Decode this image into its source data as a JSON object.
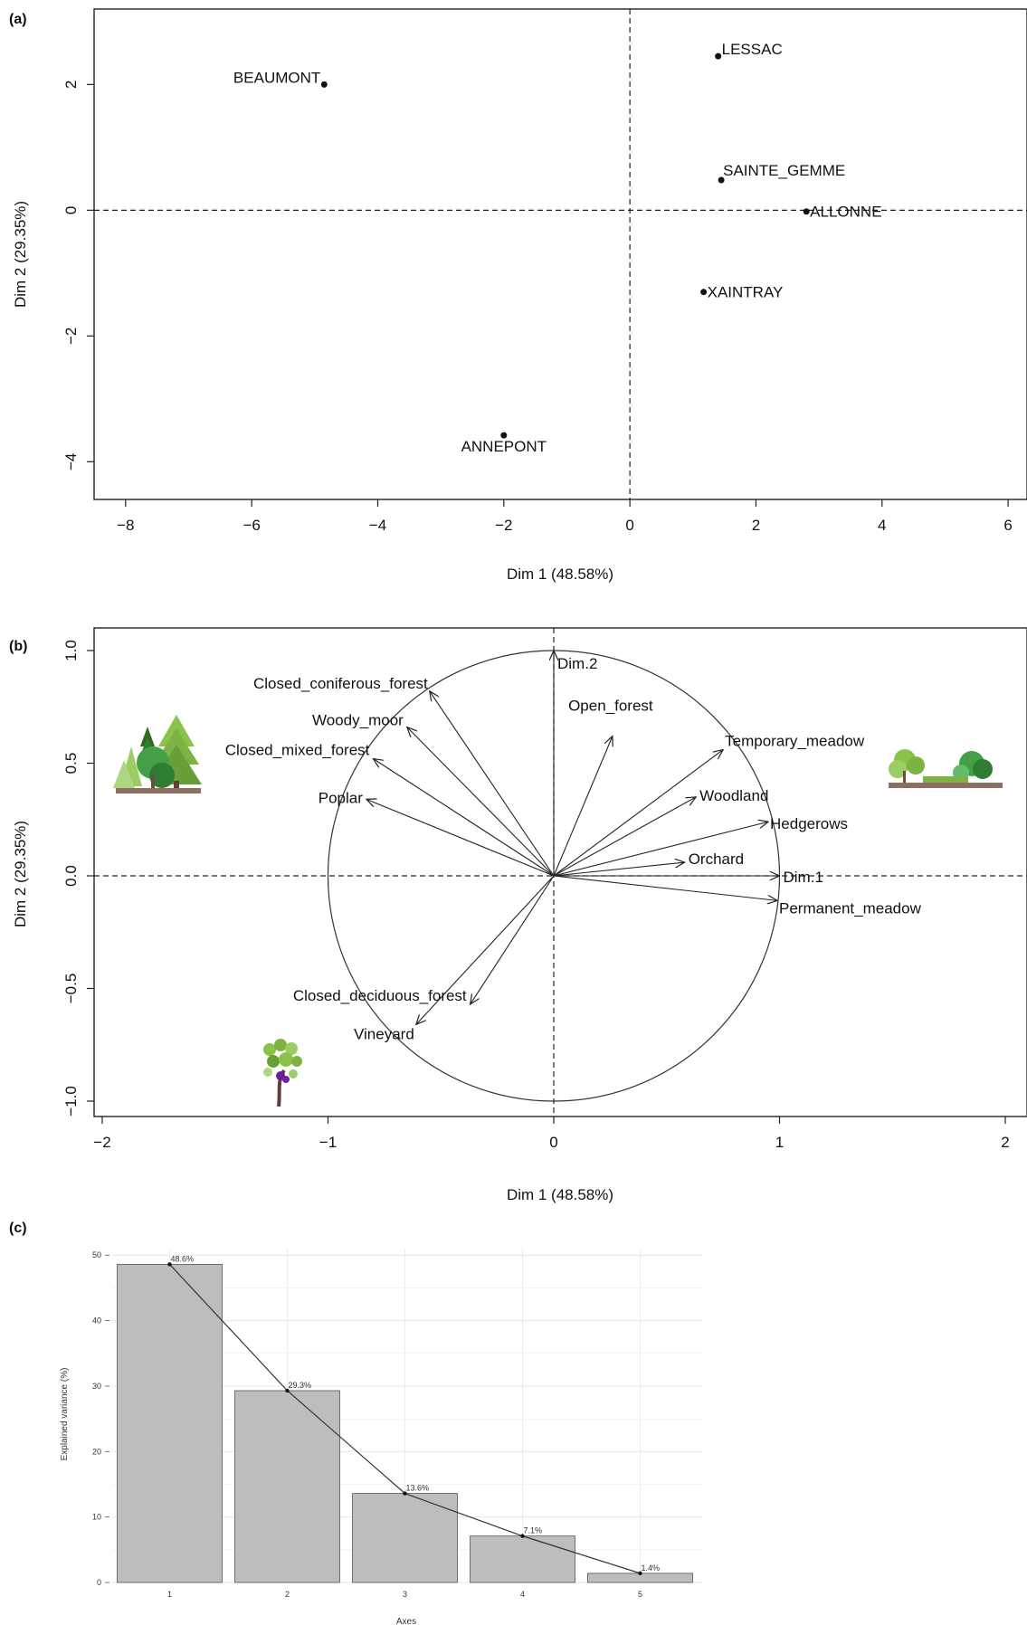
{
  "panels": {
    "a": {
      "label": "(a)"
    },
    "b": {
      "label": "(b)"
    },
    "c": {
      "label": "(c)"
    }
  },
  "icons": {
    "forest": "mixed-forest-icon",
    "meadow": "meadow-hedgerow-icon",
    "vineyard": "grapevine-icon"
  },
  "chart_data": [
    {
      "type": "scatter",
      "panel": "a",
      "xlabel": "Dim 1 (48.58%)",
      "ylabel": "Dim 2 (29.35%)",
      "xlim": [
        -8.5,
        6.3
      ],
      "ylim": [
        -4.6,
        3.2
      ],
      "xticks": [
        -8,
        -6,
        -4,
        -2,
        0,
        2,
        4,
        6
      ],
      "yticks": [
        -4,
        -2,
        0,
        2
      ],
      "reference_lines": "dashed lines at x=0 and y=0",
      "points": [
        {
          "name": "BEAUMONT",
          "x": -4.85,
          "y": 2.0
        },
        {
          "name": "LESSAC",
          "x": 1.4,
          "y": 2.45
        },
        {
          "name": "SAINTE_GEMME",
          "x": 1.45,
          "y": 0.48
        },
        {
          "name": "ALLONNE",
          "x": 2.8,
          "y": -0.02
        },
        {
          "name": "XAINTRAY",
          "x": 1.17,
          "y": -1.3
        },
        {
          "name": "ANNEPONT",
          "x": -2.0,
          "y": -3.58
        }
      ]
    },
    {
      "type": "scatter",
      "subtype": "correlation-circle",
      "panel": "b",
      "xlabel": "Dim 1 (48.58%)",
      "ylabel": "Dim 2 (29.35%)",
      "xlim": [
        -2.05,
        2.05
      ],
      "ylim": [
        -1.08,
        1.08
      ],
      "xticks": [
        -2,
        -1,
        0,
        1,
        2
      ],
      "yticks": [
        -1.0,
        -0.5,
        0.0,
        0.5,
        1.0
      ],
      "circle_radius": 1,
      "vectors": [
        {
          "name": "Dim.2",
          "x": 0.0,
          "y": 1.0
        },
        {
          "name": "Dim.1",
          "x": 1.0,
          "y": 0.0
        },
        {
          "name": "Closed_coniferous_forest",
          "x": -0.55,
          "y": 0.82
        },
        {
          "name": "Woody_moor",
          "x": -0.65,
          "y": 0.66
        },
        {
          "name": "Closed_mixed_forest",
          "x": -0.8,
          "y": 0.52
        },
        {
          "name": "Poplar",
          "x": -0.83,
          "y": 0.34
        },
        {
          "name": "Open_forest",
          "x": 0.26,
          "y": 0.62
        },
        {
          "name": "Temporary_meadow",
          "x": 0.75,
          "y": 0.56
        },
        {
          "name": "Woodland",
          "x": 0.63,
          "y": 0.35
        },
        {
          "name": "Hedgerows",
          "x": 0.95,
          "y": 0.24
        },
        {
          "name": "Orchard",
          "x": 0.58,
          "y": 0.06
        },
        {
          "name": "Permanent_meadow",
          "x": 0.99,
          "y": -0.11
        },
        {
          "name": "Closed_deciduous_forest",
          "x": -0.37,
          "y": -0.57
        },
        {
          "name": "Vineyard",
          "x": -0.61,
          "y": -0.66
        }
      ]
    },
    {
      "type": "bar",
      "panel": "c",
      "xlabel": "Axes",
      "ylabel": "Explained variance (%)",
      "categories": [
        "1",
        "2",
        "3",
        "4",
        "5"
      ],
      "values": [
        48.6,
        29.3,
        13.6,
        7.1,
        1.4
      ],
      "data_labels": [
        "48.6%",
        "29.3%",
        "13.6%",
        "7.1%",
        "1.4%"
      ],
      "ylim": [
        0,
        51
      ],
      "yticks": [
        0,
        10,
        20,
        30,
        40,
        50
      ],
      "line_overlay": true,
      "bar_color": "#bdbdbd",
      "grid": true
    }
  ]
}
